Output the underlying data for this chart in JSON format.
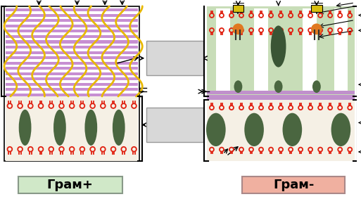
{
  "fig_width": 5.13,
  "fig_height": 2.83,
  "dpi": 100,
  "gram_pos_label": "Грам+",
  "gram_neg_label": "Грам-",
  "purple": "#c080cc",
  "yellow": "#e8b800",
  "red": "#e02010",
  "green_dark": "#4a6640",
  "orange": "#e07820",
  "yellow_sq": "#d8c010",
  "lt_green_bg": "#c8ddb8",
  "membrane_bg": "#f5f0e5",
  "box_gray": "#d8d8d8",
  "box_edge": "#999999",
  "purple_thin": "#c090cc",
  "gram_pos_lbl_bg": "#d0e8c8",
  "gram_neg_lbl_bg": "#f0b0a0"
}
